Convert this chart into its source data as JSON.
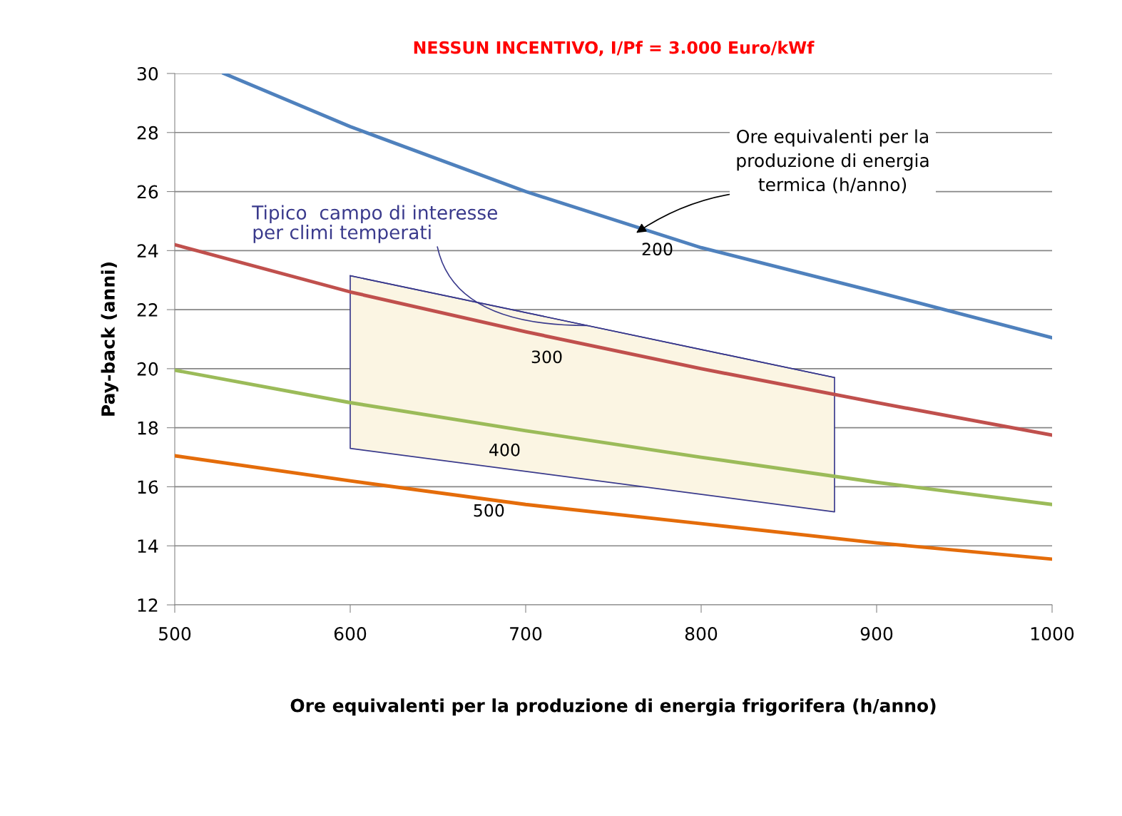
{
  "chart_data": {
    "type": "line",
    "title": "NESSUN INCENTIVO, I/Pf = 3.000 Euro/kWf",
    "xlabel": "Ore equivalenti per la produzione di energia frigorifera (h/anno)",
    "ylabel": "Pay-back (anni)",
    "series": [
      {
        "color": "#3a3a8c",
        "x": [
          600,
          876
        ],
        "values": [
          23.15,
          19.7
        ],
        "lower": [
          17.3,
          15.15
        ],
        "upper": [
          23.15,
          19.7
        ]
      },
      {
        "color": "#4f81bd",
        "x": [
          528,
          600,
          700,
          800,
          900,
          1000
        ],
        "values": [
          30,
          28.2,
          26.0,
          24.1,
          22.6,
          21.05
        ]
      },
      {
        "color": "#c0504d",
        "x": [
          500,
          600,
          700,
          800,
          900,
          1000
        ],
        "values": [
          24.2,
          22.6,
          21.25,
          20.0,
          18.85,
          17.75
        ]
      },
      {
        "color": "#9bbb59",
        "x": [
          500,
          600,
          700,
          800,
          900,
          1000
        ],
        "values": [
          19.95,
          18.85,
          17.9,
          17.0,
          16.15,
          15.4
        ]
      },
      {
        "color": "#e46c0a",
        "x": [
          500,
          600,
          700,
          800,
          900,
          1000
        ],
        "values": [
          17.05,
          16.2,
          15.4,
          14.75,
          14.1,
          13.55
        ]
      }
    ],
    "annotations": [
      "200",
      "300",
      "400",
      "500",
      "Ore equivalenti per la\nproduzione di energia\ntermica (h/anno)",
      {
        "text": "Tipico  campo di interesse\nper climi temperati",
        "x": 735,
        "y": 21.46
      }
    ],
    "xlim": [
      500,
      1000
    ],
    "xticks": [
      500,
      600,
      700,
      800,
      900,
      1000
    ],
    "ylim": [
      12,
      30
    ],
    "yticks": [
      12,
      14,
      16,
      18,
      20,
      22,
      24,
      26,
      28,
      30
    ],
    "grid": "y",
    "legend": false
  }
}
